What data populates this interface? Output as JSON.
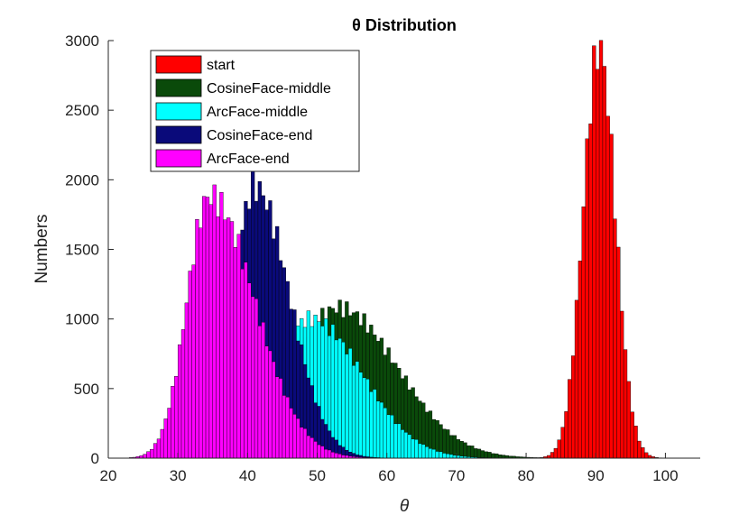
{
  "chart_data": {
    "type": "bar",
    "title": "θ Distribution",
    "xlabel": "θ",
    "ylabel": "Numbers",
    "xlim": [
      20,
      105
    ],
    "ylim": [
      0,
      3000
    ],
    "xticks": [
      20,
      30,
      40,
      50,
      60,
      70,
      80,
      90,
      100
    ],
    "yticks": [
      0,
      500,
      1000,
      1500,
      2000,
      2500,
      3000
    ],
    "grid": false,
    "legend_position": "top-left",
    "bin_width": 0.5,
    "series": [
      {
        "name": "start",
        "color": "#ff0000",
        "peak": 2950,
        "peak_x": 90.5,
        "spread_left": 2.3,
        "spread_right": 2.3,
        "x_min": 82,
        "x_max": 99.5
      },
      {
        "name": "CosineFace-middle",
        "color": "#0a4a0a",
        "peak": 1080,
        "peak_x": 53,
        "spread_left": 6.5,
        "spread_right": 8.5,
        "x_min": 30,
        "x_max": 82
      },
      {
        "name": "ArcFace-middle",
        "color": "#00ffff",
        "peak": 1000,
        "peak_x": 49,
        "spread_left": 5.5,
        "spread_right": 7.5,
        "x_min": 29,
        "x_max": 80
      },
      {
        "name": "CosineFace-end",
        "color": "#0a0a7a",
        "peak": 1950,
        "peak_x": 41,
        "spread_left": 3.0,
        "spread_right": 5.0,
        "x_min": 30,
        "x_max": 65
      },
      {
        "name": "ArcFace-end",
        "color": "#ff00ff",
        "peak": 1880,
        "peak_x": 34.5,
        "spread_left": 3.2,
        "spread_right": 6.5,
        "x_min": 23,
        "x_max": 70
      }
    ]
  }
}
